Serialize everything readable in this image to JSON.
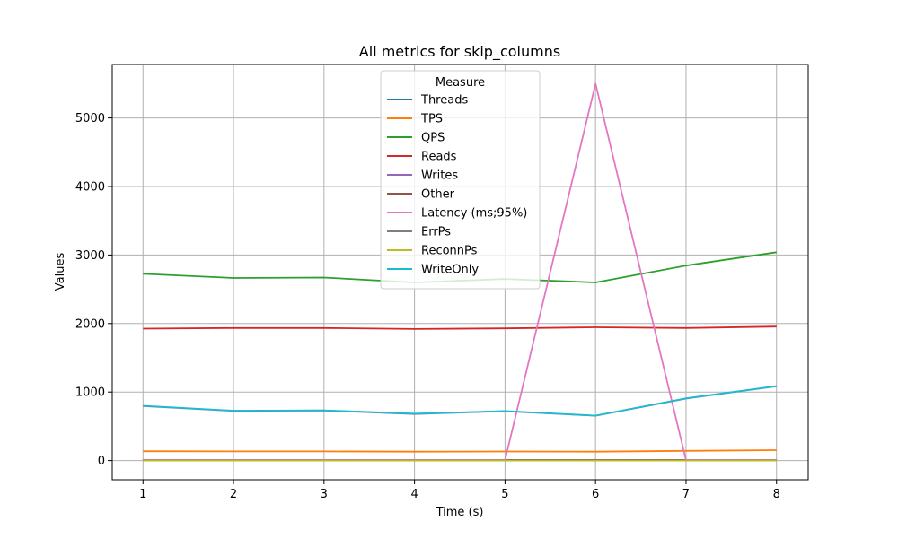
{
  "chart_data": {
    "type": "line",
    "title": "All metrics for skip_columns",
    "xlabel": "Time (s)",
    "ylabel": "Values",
    "xlim": [
      0.66,
      8.35
    ],
    "ylim": [
      -280,
      5780
    ],
    "x_ticks": [
      1,
      2,
      3,
      4,
      5,
      6,
      7,
      8
    ],
    "y_ticks": [
      0,
      1000,
      2000,
      3000,
      4000,
      5000
    ],
    "grid": true,
    "legend": {
      "title": "Measure",
      "placement": "upper-center"
    },
    "x": [
      1,
      2,
      3,
      4,
      5,
      6,
      7,
      8
    ],
    "series": [
      {
        "name": "Threads",
        "color": "#1f77b4",
        "values": [
          8,
          8,
          8,
          8,
          8,
          8,
          8,
          8
        ]
      },
      {
        "name": "TPS",
        "color": "#ff7f0e",
        "values": [
          136,
          133,
          134,
          130,
          132,
          130,
          142,
          152
        ]
      },
      {
        "name": "QPS",
        "color": "#2ca02c",
        "values": [
          2725,
          2665,
          2672,
          2600,
          2650,
          2600,
          2845,
          3040
        ]
      },
      {
        "name": "Reads",
        "color": "#d62728",
        "values": [
          1925,
          1935,
          1935,
          1920,
          1930,
          1945,
          1935,
          1955
        ]
      },
      {
        "name": "Writes",
        "color": "#9467bd",
        "values": [
          795,
          725,
          730,
          680,
          720,
          655,
          905,
          1085
        ]
      },
      {
        "name": "Other",
        "color": "#8c564b",
        "values": [
          8,
          8,
          8,
          8,
          8,
          8,
          8,
          8
        ]
      },
      {
        "name": "Latency (ms;95%)",
        "color": "#e377c2",
        "values": [
          8,
          8,
          8,
          8,
          8,
          5500,
          8,
          8
        ]
      },
      {
        "name": "ErrPs",
        "color": "#7f7f7f",
        "values": [
          0,
          0,
          0,
          0,
          0,
          0,
          0,
          0
        ]
      },
      {
        "name": "ReconnPs",
        "color": "#bcbd22",
        "values": [
          0,
          0,
          0,
          0,
          0,
          0,
          0,
          0
        ]
      },
      {
        "name": "WriteOnly",
        "color": "#17becf",
        "values": [
          800,
          728,
          733,
          684,
          722,
          656,
          908,
          1087
        ]
      }
    ]
  }
}
